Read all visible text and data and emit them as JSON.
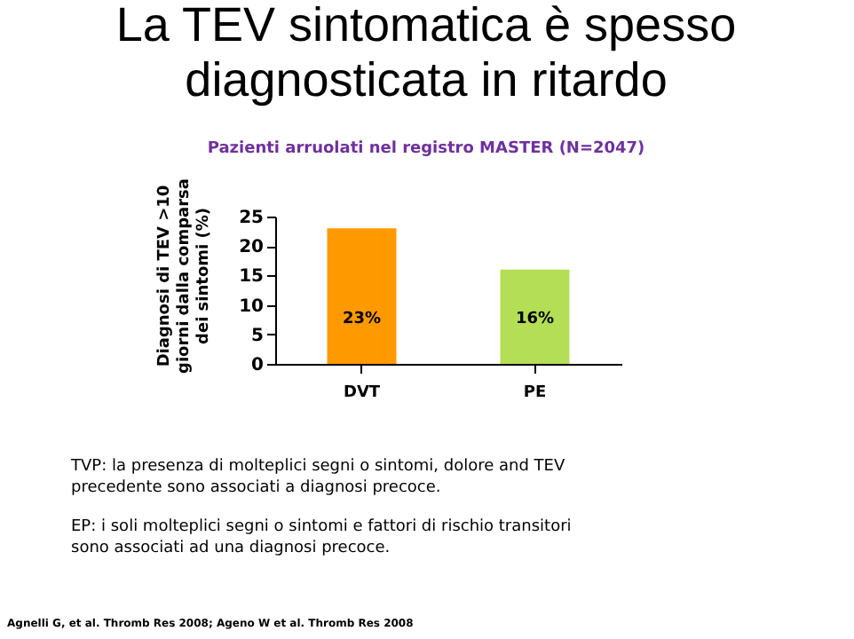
{
  "chart_data": {
    "type": "bar",
    "title": "La TEV sintomatica è spesso diagnosticata in ritardo",
    "subtitle": "Pazienti arruolati nel registro MASTER (N=2047)",
    "ylabel": "Diagnosi di TEV >10 giorni dalla comparsa dei sintomi (%)",
    "categories": [
      "DVT",
      "PE"
    ],
    "values": [
      23,
      16
    ],
    "colors": [
      "#ff9900",
      "#b3de55"
    ],
    "value_labels": [
      "23%",
      "16%"
    ],
    "ylim": [
      0,
      25
    ],
    "yticks": [
      0,
      5,
      10,
      15,
      20,
      25
    ],
    "grid": false,
    "annotations": [
      "TVP: la presenza di molteplici segni o sintomi, dolore and TEV precedente  sono associati a diagnosi precoce.",
      "EP: i soli molteplici segni o sintomi e fattori di rischio transitori sono associati ad una diagnosi precoce.",
      "Agnelli G, et al. Thromb Res 2008; Ageno W et al. Thromb Res 2008"
    ]
  }
}
